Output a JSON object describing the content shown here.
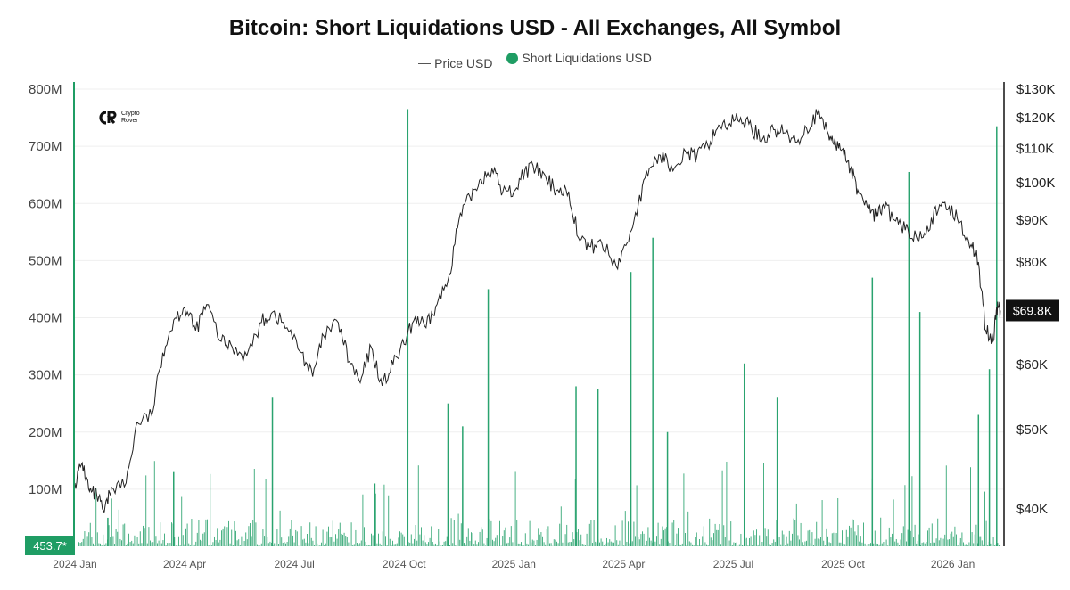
{
  "chart_data": {
    "type": "bar",
    "title": "Bitcoin: Short Liquidations USD - All Exchanges, All Symbol",
    "legend": [
      {
        "name": "Price USD",
        "marker": "line",
        "color": "#555555"
      },
      {
        "name": "Short Liquidations USD",
        "marker": "dot",
        "color": "#1f9d64"
      }
    ],
    "legend_position": "top-center",
    "grid": "horizontal",
    "x_range": [
      "2024-01-01",
      "2026-02-12"
    ],
    "xticks": [
      {
        "label": "2024 Jan",
        "month": 0
      },
      {
        "label": "2024 Apr",
        "month": 3
      },
      {
        "label": "2024 Jul",
        "month": 6
      },
      {
        "label": "2024 Oct",
        "month": 9
      },
      {
        "label": "2025 Jan",
        "month": 12
      },
      {
        "label": "2025 Apr",
        "month": 15
      },
      {
        "label": "2025 Jul",
        "month": 18
      },
      {
        "label": "2025 Oct",
        "month": 21
      },
      {
        "label": "2026 Jan",
        "month": 24
      }
    ],
    "left_axis": {
      "label": "Short Liquidations USD",
      "range": [
        0,
        800000000
      ],
      "ticks": [
        {
          "value": 100000000,
          "label": "100M"
        },
        {
          "value": 200000000,
          "label": "200M"
        },
        {
          "value": 300000000,
          "label": "300M"
        },
        {
          "value": 400000000,
          "label": "400M"
        },
        {
          "value": 500000000,
          "label": "500M"
        },
        {
          "value": 600000000,
          "label": "600M"
        },
        {
          "value": 700000000,
          "label": "700M"
        },
        {
          "value": 800000000,
          "label": "800M"
        }
      ]
    },
    "right_axis": {
      "label": "Price USD",
      "scale": "log",
      "range": [
        36000,
        130000
      ],
      "ticks": [
        {
          "value": 40000,
          "label": "$40K"
        },
        {
          "value": 50000,
          "label": "$50K"
        },
        {
          "value": 60000,
          "label": "$60K"
        },
        {
          "value": 80000,
          "label": "$80K"
        },
        {
          "value": 90000,
          "label": "$90K"
        },
        {
          "value": 100000,
          "label": "$100K"
        },
        {
          "value": 110000,
          "label": "$110K"
        },
        {
          "value": 120000,
          "label": "$120K"
        },
        {
          "value": 130000,
          "label": "$130K"
        }
      ]
    },
    "current_price_label": "$69.8K",
    "current_price_value": 69800,
    "current_liquidation_label": "453.7*",
    "current_liquidation_value": 453.7,
    "price_series": {
      "name": "Price USD",
      "points": [
        [
          0,
          43000
        ],
        [
          0.2,
          45500
        ],
        [
          0.4,
          42000
        ],
        [
          0.6,
          41500
        ],
        [
          0.8,
          39500
        ],
        [
          1.0,
          42500
        ],
        [
          1.4,
          43000
        ],
        [
          1.7,
          51000
        ],
        [
          2.1,
          52000
        ],
        [
          2.4,
          62000
        ],
        [
          2.7,
          68000
        ],
        [
          3.0,
          70500
        ],
        [
          3.3,
          66000
        ],
        [
          3.6,
          71000
        ],
        [
          4.0,
          64000
        ],
        [
          4.3,
          63000
        ],
        [
          4.7,
          61500
        ],
        [
          5.1,
          67500
        ],
        [
          5.4,
          69500
        ],
        [
          5.8,
          66500
        ],
        [
          6.2,
          62000
        ],
        [
          6.5,
          58000
        ],
        [
          6.8,
          65000
        ],
        [
          7.2,
          67500
        ],
        [
          7.5,
          60500
        ],
        [
          7.8,
          57000
        ],
        [
          8.1,
          63000
        ],
        [
          8.4,
          56500
        ],
        [
          8.7,
          60000
        ],
        [
          9.0,
          63500
        ],
        [
          9.3,
          68500
        ],
        [
          9.6,
          66500
        ],
        [
          9.9,
          71000
        ],
        [
          10.2,
          76000
        ],
        [
          10.5,
          90000
        ],
        [
          10.8,
          96000
        ],
        [
          11.1,
          101000
        ],
        [
          11.4,
          104000
        ],
        [
          11.7,
          97500
        ],
        [
          12.0,
          97500
        ],
        [
          12.3,
          103500
        ],
        [
          12.6,
          104000
        ],
        [
          12.9,
          100500
        ],
        [
          13.2,
          98000
        ],
        [
          13.5,
          97500
        ],
        [
          13.8,
          85000
        ],
        [
          14.1,
          83500
        ],
        [
          14.4,
          84500
        ],
        [
          14.8,
          79000
        ],
        [
          15.1,
          84500
        ],
        [
          15.4,
          94000
        ],
        [
          15.7,
          104000
        ],
        [
          16.0,
          108000
        ],
        [
          16.3,
          105000
        ],
        [
          16.7,
          109000
        ],
        [
          17.0,
          107500
        ],
        [
          17.3,
          111000
        ],
        [
          17.6,
          117500
        ],
        [
          17.9,
          118000
        ],
        [
          18.2,
          120000
        ],
        [
          18.5,
          116500
        ],
        [
          18.8,
          113000
        ],
        [
          19.1,
          116000
        ],
        [
          19.4,
          115000
        ],
        [
          19.7,
          112000
        ],
        [
          20.0,
          116500
        ],
        [
          20.3,
          121000
        ],
        [
          20.6,
          114500
        ],
        [
          20.8,
          111000
        ],
        [
          21.0,
          110000
        ],
        [
          21.2,
          104000
        ],
        [
          21.4,
          98000
        ],
        [
          21.7,
          93000
        ],
        [
          21.9,
          91000
        ],
        [
          22.1,
          94000
        ],
        [
          22.4,
          90000
        ],
        [
          22.7,
          87500
        ],
        [
          23.0,
          86000
        ],
        [
          23.3,
          88500
        ],
        [
          23.6,
          92500
        ],
        [
          23.9,
          93500
        ],
        [
          24.2,
          89500
        ],
        [
          24.5,
          84000
        ],
        [
          24.7,
          80000
        ],
        [
          24.9,
          66000
        ],
        [
          25.1,
          64000
        ],
        [
          25.2,
          70500
        ],
        [
          25.3,
          69800
        ]
      ]
    },
    "short_liquidations": {
      "name": "Short Liquidations USD",
      "spikes": [
        {
          "month": 0.9,
          "value": 50000000
        },
        {
          "month": 2.7,
          "value": 130000000
        },
        {
          "month": 5.4,
          "value": 260000000
        },
        {
          "month": 8.2,
          "value": 110000000
        },
        {
          "month": 9.1,
          "value": 765000000
        },
        {
          "month": 10.2,
          "value": 250000000
        },
        {
          "month": 10.6,
          "value": 210000000
        },
        {
          "month": 11.3,
          "value": 450000000
        },
        {
          "month": 13.7,
          "value": 280000000
        },
        {
          "month": 14.3,
          "value": 275000000
        },
        {
          "month": 15.2,
          "value": 480000000
        },
        {
          "month": 15.8,
          "value": 540000000
        },
        {
          "month": 16.2,
          "value": 200000000
        },
        {
          "month": 18.3,
          "value": 320000000
        },
        {
          "month": 19.2,
          "value": 260000000
        },
        {
          "month": 21.8,
          "value": 470000000
        },
        {
          "month": 22.8,
          "value": 655000000
        },
        {
          "month": 23.1,
          "value": 410000000
        },
        {
          "month": 24.7,
          "value": 230000000
        },
        {
          "month": 25.0,
          "value": 310000000
        },
        {
          "month": 25.2,
          "value": 735000000
        }
      ]
    }
  },
  "logo": {
    "line1": "Crypto",
    "line2": "Rover"
  }
}
